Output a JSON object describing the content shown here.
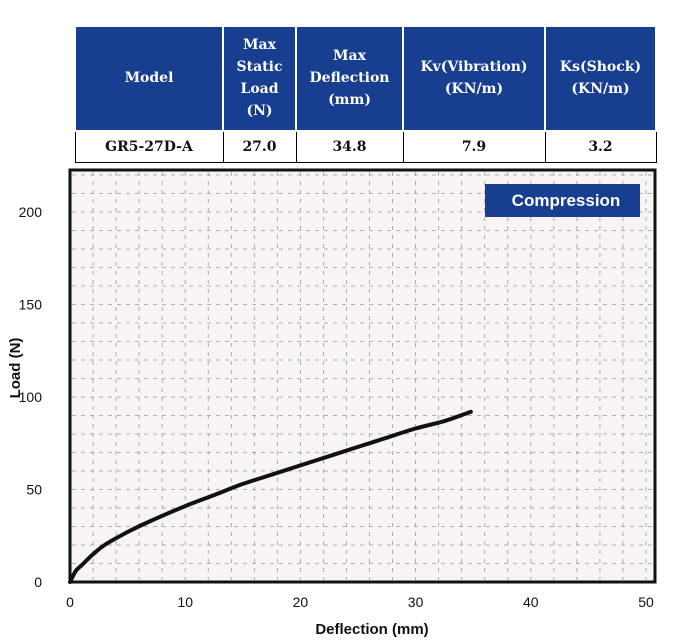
{
  "spec_table": {
    "headers": [
      "Model",
      "Max Static Load (N)",
      "Max Deflection (mm)",
      "Kv(Vibration) (KN/m)",
      "Ks(Shock) (KN/m)"
    ],
    "row": [
      "GR5-27D-A",
      "27.0",
      "34.8",
      "7.9",
      "3.2"
    ]
  },
  "chart_data": {
    "type": "line",
    "xlabel": "Deflection (mm)",
    "ylabel": "Load (N)",
    "xlim": [
      0,
      50
    ],
    "ylim": [
      0,
      220
    ],
    "xticks": [
      0,
      10,
      20,
      30,
      40,
      50
    ],
    "yticks": [
      0,
      50,
      100,
      150,
      200
    ],
    "grid": true,
    "legend": {
      "label": "Compression",
      "placement": "top-right"
    },
    "series": [
      {
        "name": "Compression",
        "color": "#111111",
        "x": [
          0,
          0.5,
          1,
          2,
          3,
          5,
          7,
          10,
          12.5,
          15,
          17.5,
          20,
          22.5,
          25,
          27.5,
          30,
          32.5,
          34.8
        ],
        "y": [
          0,
          6,
          9,
          15,
          20,
          27,
          33,
          41,
          47,
          53,
          58,
          63,
          68,
          73,
          78,
          83,
          87,
          92
        ]
      }
    ]
  },
  "colors": {
    "header_bg": "#173e8f",
    "plot_bg": "#f7f4f3",
    "legend_bg": "#173e8f"
  }
}
